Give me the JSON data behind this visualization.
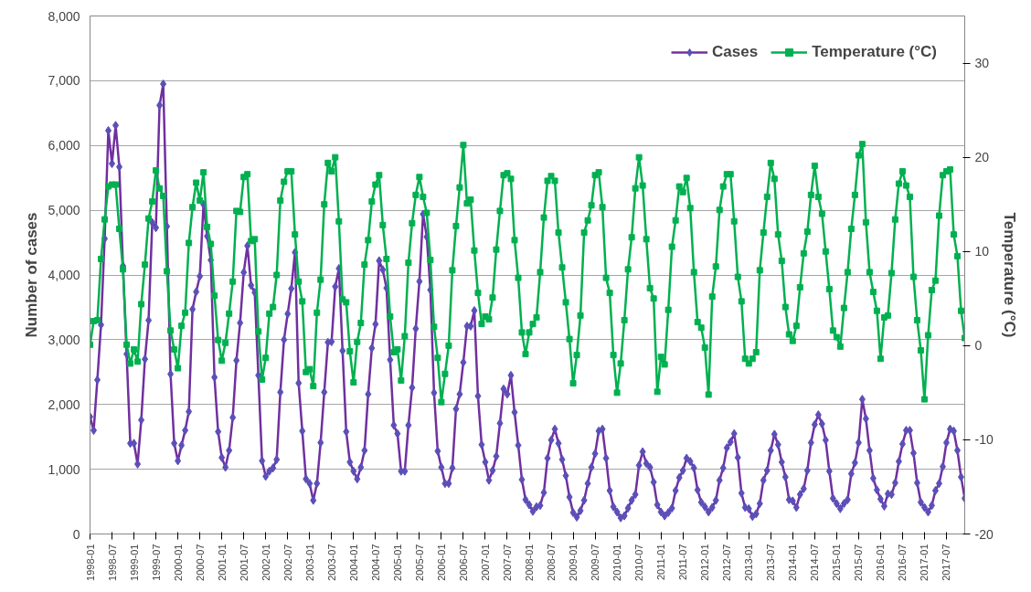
{
  "chart_data": {
    "type": "line",
    "xlabel": null,
    "ylabel": "Number of cases",
    "y2label": "Temperature (°C)",
    "x": [
      "1998-01",
      "1998-02",
      "1998-03",
      "1998-04",
      "1998-05",
      "1998-06",
      "1998-07",
      "1998-08",
      "1998-09",
      "1998-10",
      "1998-11",
      "1998-12",
      "1999-01",
      "1999-02",
      "1999-03",
      "1999-04",
      "1999-05",
      "1999-06",
      "1999-07",
      "1999-08",
      "1999-09",
      "1999-10",
      "1999-11",
      "1999-12",
      "2000-01",
      "2000-02",
      "2000-03",
      "2000-04",
      "2000-05",
      "2000-06",
      "2000-07",
      "2000-08",
      "2000-09",
      "2000-10",
      "2000-11",
      "2000-12",
      "2001-01",
      "2001-02",
      "2001-03",
      "2001-04",
      "2001-05",
      "2001-06",
      "2001-07",
      "2001-08",
      "2001-09",
      "2001-10",
      "2001-11",
      "2001-12",
      "2002-01",
      "2002-02",
      "2002-03",
      "2002-04",
      "2002-05",
      "2002-06",
      "2002-07",
      "2002-08",
      "2002-09",
      "2002-10",
      "2002-11",
      "2002-12",
      "2003-01",
      "2003-02",
      "2003-03",
      "2003-04",
      "2003-05",
      "2003-06",
      "2003-07",
      "2003-08",
      "2003-09",
      "2003-10",
      "2003-11",
      "2003-12",
      "2004-01",
      "2004-02",
      "2004-03",
      "2004-04",
      "2004-05",
      "2004-06",
      "2004-07",
      "2004-08",
      "2004-09",
      "2004-10",
      "2004-11",
      "2004-12",
      "2005-01",
      "2005-02",
      "2005-03",
      "2005-04",
      "2005-05",
      "2005-06",
      "2005-07",
      "2005-08",
      "2005-09",
      "2005-10",
      "2005-11",
      "2005-12",
      "2006-01",
      "2006-02",
      "2006-03",
      "2006-04",
      "2006-05",
      "2006-06",
      "2006-07",
      "2006-08",
      "2006-09",
      "2006-10",
      "2006-11",
      "2006-12",
      "2007-01",
      "2007-02",
      "2007-03",
      "2007-04",
      "2007-05",
      "2007-06",
      "2007-07",
      "2007-08",
      "2007-09",
      "2007-10",
      "2007-11",
      "2007-12",
      "2008-01",
      "2008-02",
      "2008-03",
      "2008-04",
      "2008-05",
      "2008-06",
      "2008-07",
      "2008-08",
      "2008-09",
      "2008-10",
      "2008-11",
      "2008-12",
      "2009-01",
      "2009-02",
      "2009-03",
      "2009-04",
      "2009-05",
      "2009-06",
      "2009-07",
      "2009-08",
      "2009-09",
      "2009-10",
      "2009-11",
      "2009-12",
      "2010-01",
      "2010-02",
      "2010-03",
      "2010-04",
      "2010-05",
      "2010-06",
      "2010-07",
      "2010-08",
      "2010-09",
      "2010-10",
      "2010-11",
      "2010-12",
      "2011-01",
      "2011-02",
      "2011-03",
      "2011-04",
      "2011-05",
      "2011-06",
      "2011-07",
      "2011-08",
      "2011-09",
      "2011-10",
      "2011-11",
      "2011-12",
      "2012-01",
      "2012-02",
      "2012-03",
      "2012-04",
      "2012-05",
      "2012-06",
      "2012-07",
      "2012-08",
      "2012-09",
      "2012-10",
      "2012-11",
      "2012-12",
      "2013-01",
      "2013-02",
      "2013-03",
      "2013-04",
      "2013-05",
      "2013-06",
      "2013-07",
      "2013-08",
      "2013-09",
      "2013-10",
      "2013-11",
      "2013-12",
      "2014-01",
      "2014-02",
      "2014-03",
      "2014-04",
      "2014-05",
      "2014-06",
      "2014-07",
      "2014-08",
      "2014-09",
      "2014-10",
      "2014-11",
      "2014-12",
      "2015-01",
      "2015-02",
      "2015-03",
      "2015-04",
      "2015-05",
      "2015-06",
      "2015-07",
      "2015-08",
      "2015-09",
      "2015-10",
      "2015-11",
      "2015-12",
      "2016-01",
      "2016-02",
      "2016-03",
      "2016-04",
      "2016-05",
      "2016-06",
      "2016-07",
      "2016-08",
      "2016-09",
      "2016-10",
      "2016-11",
      "2016-12",
      "2017-01",
      "2017-02",
      "2017-03",
      "2017-04",
      "2017-05",
      "2017-06",
      "2017-07",
      "2017-08",
      "2017-09",
      "2017-10",
      "2017-11",
      "2017-12"
    ],
    "series": [
      {
        "name": "Cases",
        "color": "#7030a0",
        "marker": "diamond",
        "values": [
          1810,
          1600,
          2380,
          3230,
          4560,
          6230,
          5720,
          6310,
          5670,
          4140,
          2780,
          1400,
          1400,
          1080,
          1760,
          2700,
          3300,
          4810,
          4730,
          6620,
          6950,
          4750,
          2470,
          1400,
          1130,
          1370,
          1600,
          1890,
          3470,
          3740,
          3980,
          5090,
          4600,
          4230,
          2420,
          1580,
          1180,
          1030,
          1290,
          1800,
          2680,
          3260,
          4040,
          4450,
          3840,
          3730,
          2450,
          1130,
          890,
          970,
          1020,
          1150,
          2190,
          3000,
          3400,
          3790,
          4350,
          2330,
          1590,
          850,
          780,
          520,
          780,
          1410,
          2190,
          2960,
          2970,
          3820,
          4100,
          2830,
          1580,
          1110,
          970,
          850,
          1030,
          1290,
          2160,
          2870,
          3240,
          4220,
          4080,
          3800,
          2690,
          1680,
          1550,
          970,
          970,
          1680,
          2260,
          3170,
          3900,
          4940,
          4590,
          3770,
          2180,
          1280,
          1030,
          780,
          780,
          1020,
          1930,
          2160,
          2650,
          3210,
          3210,
          3450,
          2130,
          1380,
          1110,
          830,
          980,
          1200,
          1710,
          2240,
          2160,
          2450,
          1880,
          1370,
          840,
          530,
          450,
          350,
          420,
          440,
          640,
          1170,
          1450,
          1620,
          1400,
          1150,
          900,
          570,
          330,
          260,
          360,
          520,
          780,
          1030,
          1240,
          1590,
          1620,
          1170,
          670,
          420,
          340,
          250,
          280,
          400,
          520,
          610,
          1060,
          1270,
          1090,
          1030,
          800,
          450,
          340,
          280,
          330,
          400,
          670,
          870,
          980,
          1170,
          1120,
          1020,
          680,
          490,
          420,
          340,
          410,
          520,
          830,
          1020,
          1330,
          1420,
          1550,
          1180,
          630,
          410,
          390,
          270,
          310,
          470,
          830,
          980,
          1290,
          1540,
          1380,
          1110,
          880,
          530,
          510,
          410,
          610,
          700,
          980,
          1410,
          1690,
          1840,
          1700,
          1450,
          970,
          550,
          470,
          390,
          470,
          530,
          930,
          1100,
          1410,
          2080,
          1780,
          1290,
          860,
          680,
          540,
          430,
          620,
          610,
          790,
          1120,
          1390,
          1600,
          1600,
          1250,
          790,
          490,
          410,
          340,
          440,
          670,
          780,
          1040,
          1410,
          1620,
          1590,
          1290,
          880,
          550
        ]
      },
      {
        "name": "Temperature (°C)",
        "color": "#00b050",
        "marker": "square",
        "axis": "y2",
        "values": [
          0.1,
          2.6,
          2.7,
          9.2,
          13.4,
          16.9,
          17.1,
          17.1,
          12.4,
          8.1,
          0.1,
          -1.9,
          -0.4,
          -1.7,
          4.4,
          8.6,
          13.5,
          15.3,
          18.6,
          16.7,
          15.9,
          7.9,
          1.6,
          -0.4,
          -2.4,
          2.1,
          3.5,
          10.9,
          14.7,
          17.3,
          15.4,
          18.4,
          12.6,
          10.8,
          5.3,
          0.6,
          -1.6,
          0.3,
          3.4,
          6.8,
          14.3,
          14.2,
          17.9,
          18.2,
          11.1,
          11.3,
          1.5,
          -3.6,
          -1.3,
          3.4,
          4.1,
          7.5,
          15.4,
          17.4,
          18.5,
          18.5,
          11.8,
          6.8,
          4.7,
          -2.8,
          -2.5,
          -4.3,
          3.5,
          7.0,
          15.0,
          19.4,
          18.5,
          20.0,
          13.2,
          4.9,
          4.6,
          -0.6,
          -3.9,
          0.4,
          2.4,
          8.6,
          11.2,
          15.3,
          17.1,
          18.1,
          12.8,
          9.2,
          3.1,
          -0.7,
          -0.4,
          -3.7,
          1.0,
          8.8,
          13.0,
          16.0,
          17.9,
          15.8,
          14.1,
          9.1,
          2.0,
          -1.3,
          -6.0,
          -3.0,
          0.0,
          8.0,
          12.7,
          16.8,
          21.3,
          15.1,
          15.5,
          10.1,
          5.6,
          2.3,
          3.1,
          2.8,
          5.1,
          10.2,
          14.3,
          18.1,
          18.3,
          17.7,
          11.2,
          7.2,
          1.4,
          -0.9,
          1.4,
          2.3,
          3.0,
          7.8,
          13.6,
          17.5,
          18.0,
          17.5,
          12.0,
          8.3,
          4.6,
          0.7,
          -4.0,
          -1.0,
          3.2,
          12.0,
          13.3,
          14.9,
          18.1,
          18.4,
          14.7,
          7.2,
          5.6,
          -1.0,
          -5.0,
          -1.9,
          2.7,
          8.1,
          11.5,
          16.7,
          20.0,
          17.0,
          11.3,
          6.1,
          5.0,
          -4.9,
          -1.2,
          -2.0,
          3.8,
          10.5,
          13.3,
          16.9,
          16.3,
          17.8,
          14.6,
          7.8,
          2.5,
          1.9,
          -0.2,
          -5.2,
          5.2,
          8.4,
          14.4,
          16.9,
          18.2,
          18.2,
          13.2,
          7.3,
          4.7,
          -1.4,
          -1.9,
          -1.4,
          -0.7,
          8.0,
          12.0,
          15.8,
          19.4,
          17.7,
          11.8,
          9.0,
          4.1,
          1.2,
          0.5,
          2.1,
          6.2,
          9.8,
          12.1,
          16.0,
          19.1,
          15.8,
          14.0,
          10.0,
          6.0,
          1.6,
          0.9,
          -0.1,
          4.0,
          7.8,
          12.4,
          16.0,
          20.2,
          21.4,
          13.1,
          7.8,
          5.7,
          3.7,
          -1.4,
          3.0,
          3.2,
          7.7,
          13.4,
          17.2,
          18.5,
          17.0,
          15.8,
          7.3,
          2.7,
          -0.5,
          -5.7,
          1.1,
          5.9,
          6.9,
          13.8,
          18.1,
          18.5,
          18.7,
          11.8,
          9.5,
          3.7,
          0.8
        ]
      }
    ],
    "xlim": [
      "1998-01",
      "2017-12"
    ],
    "xticks": [
      "1998-01",
      "1998-07",
      "1999-01",
      "1999-07",
      "2000-01",
      "2000-07",
      "2001-01",
      "2001-07",
      "2002-01",
      "2002-07",
      "2003-01",
      "2003-07",
      "2004-01",
      "2004-07",
      "2005-01",
      "2005-07",
      "2006-01",
      "2006-07",
      "2007-01",
      "2007-07",
      "2008-01",
      "2008-07",
      "2009-01",
      "2009-07",
      "2010-01",
      "2010-07",
      "2011-01",
      "2011-07",
      "2012-01",
      "2012-07",
      "2013-01",
      "2013-07",
      "2014-01",
      "2014-07",
      "2015-01",
      "2015-07",
      "2016-01",
      "2016-07",
      "2017-01",
      "2017-07"
    ],
    "ylim": [
      0,
      8000
    ],
    "yticks": [
      0,
      {
        "value": 1000,
        "label": "1,000"
      },
      {
        "value": 2000,
        "label": "2,000"
      },
      {
        "value": 3000,
        "label": "3,000"
      },
      {
        "value": 4000,
        "label": "4,000"
      },
      {
        "value": 5000,
        "label": "5,000"
      },
      {
        "value": 6000,
        "label": "6,000"
      },
      {
        "value": 7000,
        "label": "7,000"
      },
      {
        "value": 8000,
        "label": "8,000"
      }
    ],
    "y2lim": [
      -20,
      35
    ],
    "y2ticks": [
      -20,
      -10,
      0,
      10,
      20,
      30
    ],
    "grid": "y",
    "legend": "top right",
    "line_style": "solid"
  }
}
